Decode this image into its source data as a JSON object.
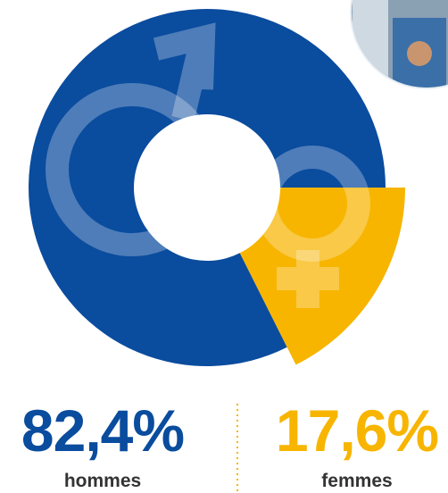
{
  "chart_data": {
    "type": "donut",
    "categories": [
      "hommes",
      "femmes"
    ],
    "values": [
      82.4,
      17.6
    ],
    "value_labels": [
      "82,4%",
      "17,6%"
    ],
    "colors": [
      "#0a4c9e",
      "#f7b500"
    ]
  }
}
